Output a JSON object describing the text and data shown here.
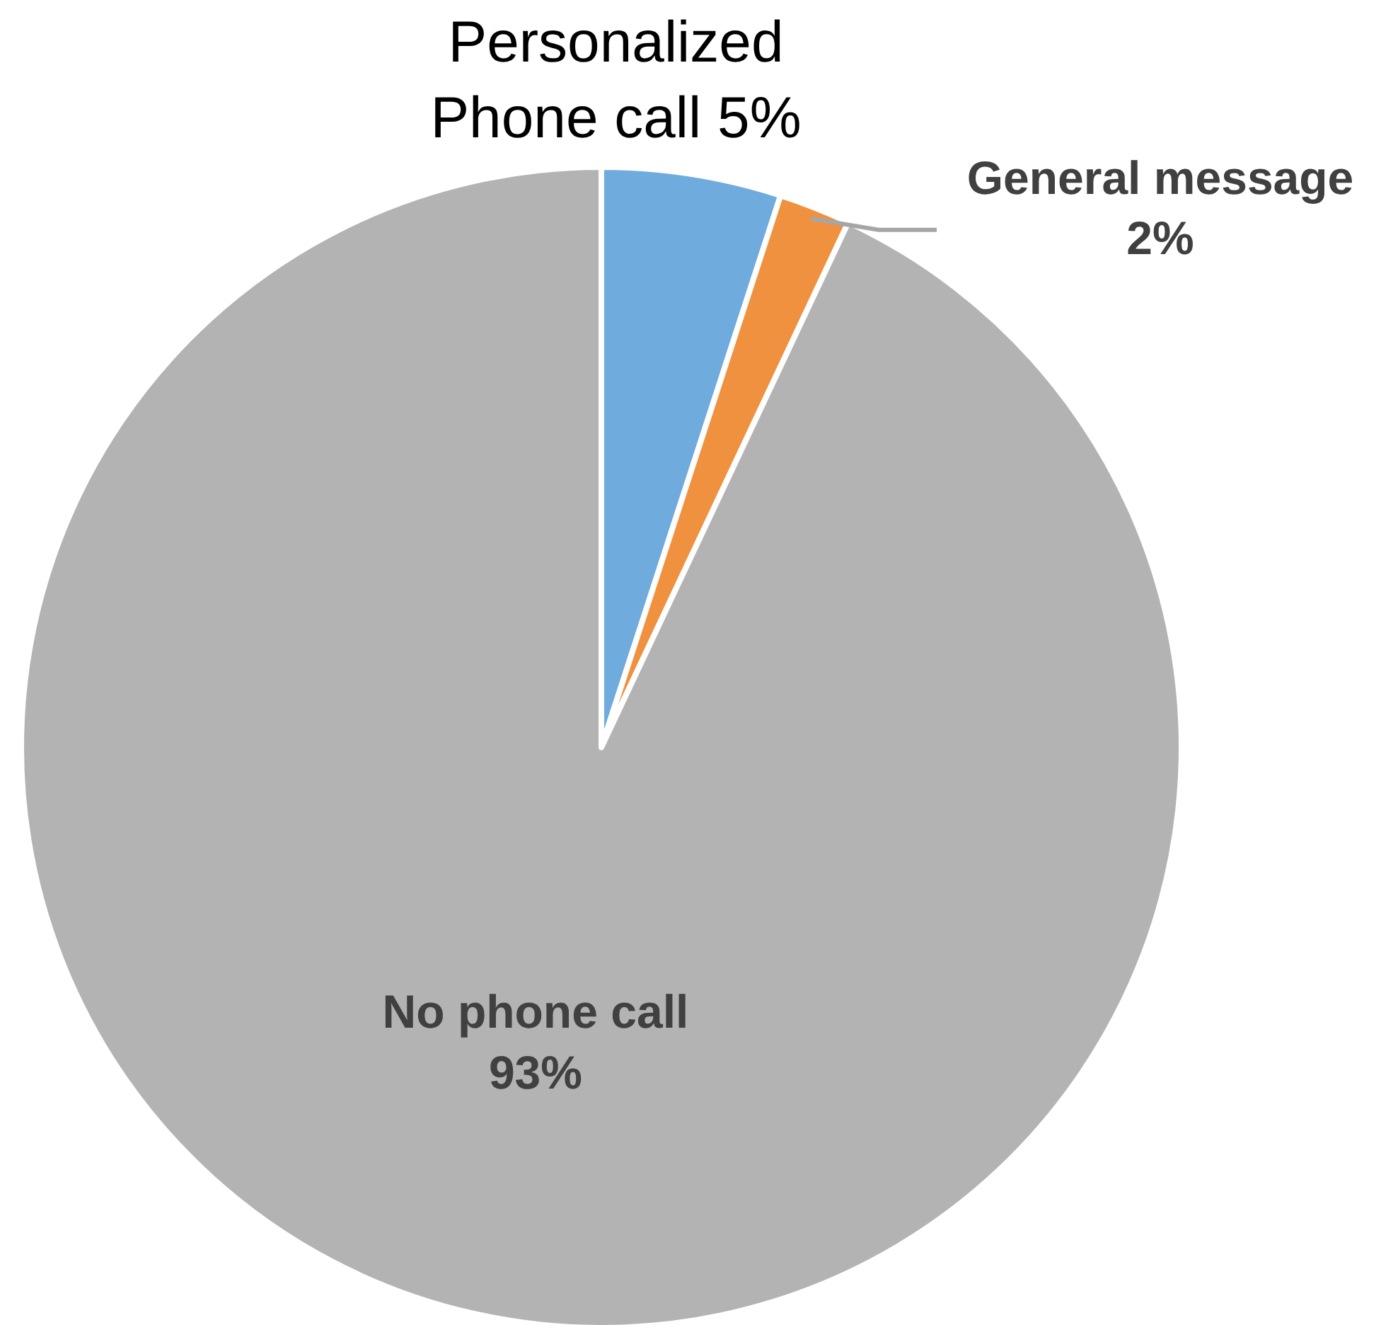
{
  "chart_data": {
    "type": "pie",
    "categories": [
      "Personalized Phone call",
      "General message",
      "No phone call"
    ],
    "values": [
      5,
      2,
      93
    ],
    "colors": [
      "#6fabdd",
      "#f0913f",
      "#b3b3b3"
    ],
    "value_labels": [
      "5%",
      "2%",
      "93%"
    ],
    "legend": false
  }
}
